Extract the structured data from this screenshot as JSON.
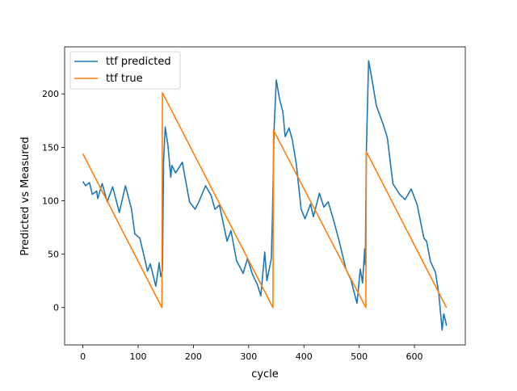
{
  "chart_data": {
    "type": "line",
    "title": "",
    "xlabel": "cycle",
    "ylabel": "Predicted vs Measured",
    "xlim": [
      -33,
      692
    ],
    "ylim": [
      -35,
      244
    ],
    "xticks": [
      0,
      100,
      200,
      300,
      400,
      500,
      600
    ],
    "yticks": [
      0,
      50,
      100,
      150,
      200
    ],
    "grid": false,
    "legend_position": "top-left",
    "series": [
      {
        "name": "ttf predicted",
        "color": "#1f77b4",
        "points": [
          [
            0,
            118
          ],
          [
            5,
            114
          ],
          [
            12,
            117
          ],
          [
            17,
            106
          ],
          [
            25,
            109
          ],
          [
            27,
            102
          ],
          [
            35,
            116
          ],
          [
            44,
            99
          ],
          [
            54,
            113
          ],
          [
            66,
            89
          ],
          [
            77,
            114
          ],
          [
            88,
            92
          ],
          [
            94,
            69
          ],
          [
            103,
            65
          ],
          [
            110,
            50
          ],
          [
            117,
            34
          ],
          [
            122,
            41
          ],
          [
            132,
            20
          ],
          [
            138,
            42
          ],
          [
            141,
            29
          ],
          [
            144,
            35
          ],
          [
            146,
            137
          ],
          [
            149,
            169
          ],
          [
            154,
            152
          ],
          [
            159,
            122
          ],
          [
            161,
            133
          ],
          [
            168,
            126
          ],
          [
            180,
            136
          ],
          [
            193,
            99
          ],
          [
            203,
            92
          ],
          [
            210,
            99
          ],
          [
            222,
            114
          ],
          [
            232,
            105
          ],
          [
            239,
            92
          ],
          [
            247,
            96
          ],
          [
            261,
            62
          ],
          [
            268,
            72
          ],
          [
            278,
            44
          ],
          [
            290,
            32
          ],
          [
            298,
            46
          ],
          [
            307,
            31
          ],
          [
            316,
            21
          ],
          [
            322,
            11
          ],
          [
            329,
            52
          ],
          [
            333,
            25
          ],
          [
            341,
            46
          ],
          [
            343,
            83
          ],
          [
            346,
            167
          ],
          [
            350,
            213
          ],
          [
            356,
            195
          ],
          [
            362,
            183
          ],
          [
            366,
            160
          ],
          [
            373,
            168
          ],
          [
            379,
            157
          ],
          [
            386,
            135
          ],
          [
            395,
            92
          ],
          [
            402,
            83
          ],
          [
            412,
            97
          ],
          [
            417,
            85
          ],
          [
            428,
            107
          ],
          [
            436,
            94
          ],
          [
            444,
            99
          ],
          [
            454,
            81
          ],
          [
            463,
            64
          ],
          [
            476,
            36
          ],
          [
            485,
            26
          ],
          [
            496,
            4
          ],
          [
            502,
            36
          ],
          [
            506,
            23
          ],
          [
            510,
            55
          ],
          [
            511,
            40
          ],
          [
            513,
            145
          ],
          [
            517,
            231
          ],
          [
            521,
            220
          ],
          [
            531,
            189
          ],
          [
            543,
            172
          ],
          [
            551,
            159
          ],
          [
            561,
            116
          ],
          [
            573,
            106
          ],
          [
            583,
            101
          ],
          [
            594,
            111
          ],
          [
            605,
            96
          ],
          [
            617,
            65
          ],
          [
            622,
            62
          ],
          [
            629,
            43
          ],
          [
            638,
            33
          ],
          [
            644,
            13
          ],
          [
            650,
            -21
          ],
          [
            653,
            -6
          ],
          [
            656,
            -12
          ],
          [
            658,
            -17
          ]
        ]
      },
      {
        "name": "ttf true",
        "color": "#ff7f0e",
        "points": [
          [
            0,
            144
          ],
          [
            143,
            0
          ],
          [
            144,
            201
          ],
          [
            344,
            0
          ],
          [
            345,
            166
          ],
          [
            512,
            0
          ],
          [
            513,
            146
          ],
          [
            658,
            0
          ]
        ]
      }
    ]
  }
}
